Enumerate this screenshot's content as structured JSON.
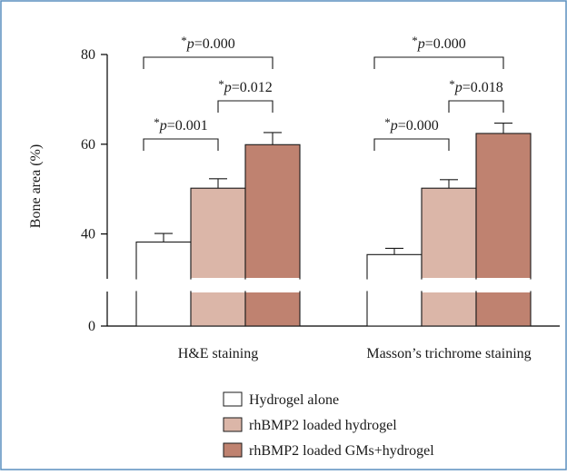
{
  "colors": {
    "border": "#5a8fbf",
    "hydrogel_alone": "#ffffff",
    "rhbmp2_hydrogel": "#dbb6a8",
    "rhbmp2_gms_hydrogel": "#bf8270"
  },
  "chart_data": {
    "type": "bar",
    "ylabel": "Bone area (%)",
    "y_ticks": [
      "80",
      "60",
      "40",
      "0"
    ],
    "ylim_upper": [
      30,
      80
    ],
    "ylim_lower": [
      0,
      8
    ],
    "broken_axis": true,
    "categories": [
      "H&E staining",
      "Masson’s trichrome staining"
    ],
    "series": [
      {
        "name": "Hydrogel alone",
        "color": "#ffffff",
        "values": [
          38.2,
          35.4
        ],
        "errors": [
          1.9,
          1.4
        ]
      },
      {
        "name": "rhBMP2 loaded hydrogel",
        "color": "#dbb6a8",
        "values": [
          50.2,
          50.2
        ],
        "errors": [
          2.1,
          1.9
        ]
      },
      {
        "name": "rhBMP2 loaded GMs+hydrogel",
        "color": "#bf8270",
        "values": [
          59.9,
          62.4
        ],
        "errors": [
          2.7,
          2.3
        ]
      }
    ],
    "significance": [
      {
        "group": 0,
        "from": 0,
        "to": 1,
        "star": "*",
        "p": "p",
        "value": "=0.001"
      },
      {
        "group": 0,
        "from": 1,
        "to": 2,
        "star": "*",
        "p": "p",
        "value": "=0.012"
      },
      {
        "group": 0,
        "from": 0,
        "to": 2,
        "star": "*",
        "p": "p",
        "value": "=0.000"
      },
      {
        "group": 1,
        "from": 0,
        "to": 1,
        "star": "*",
        "p": "p",
        "value": "=0.000"
      },
      {
        "group": 1,
        "from": 1,
        "to": 2,
        "star": "*",
        "p": "p",
        "value": "=0.018"
      },
      {
        "group": 1,
        "from": 0,
        "to": 2,
        "star": "*",
        "p": "p",
        "value": "=0.000"
      }
    ],
    "legend_position": "bottom-center"
  }
}
